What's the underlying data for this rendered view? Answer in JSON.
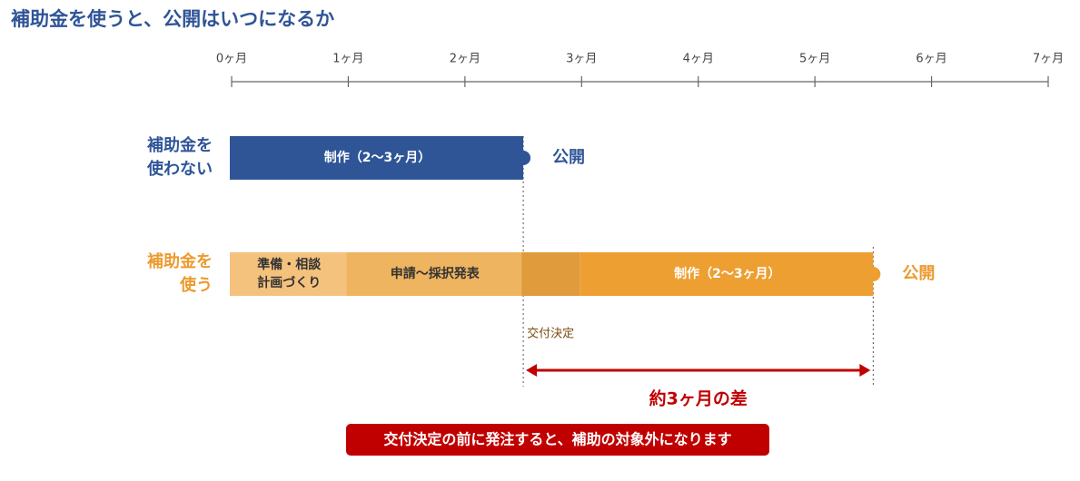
{
  "title": "補助金を使うと、公開はいつになるか",
  "axis": {
    "min": 0,
    "max": 7,
    "ticks": [
      {
        "value": 0,
        "label": "0ヶ月"
      },
      {
        "value": 1,
        "label": "1ヶ月"
      },
      {
        "value": 2,
        "label": "2ヶ月"
      },
      {
        "value": 3,
        "label": "3ヶ月"
      },
      {
        "value": 4,
        "label": "4ヶ月"
      },
      {
        "value": 5,
        "label": "5ヶ月"
      },
      {
        "value": 6,
        "label": "6ヶ月"
      },
      {
        "value": 7,
        "label": "7ヶ月"
      }
    ]
  },
  "rows": [
    {
      "label": [
        "補助金を",
        "使わない"
      ],
      "color": "#2f5597",
      "end_label": "公開",
      "segments": [
        {
          "label": [
            "制作（2〜3ヶ月）"
          ],
          "start": 0,
          "end": 2.5,
          "color": "#2f5597"
        }
      ]
    },
    {
      "label": [
        "補助金を",
        "使う"
      ],
      "color": "#ec9a2e",
      "end_label": "公開",
      "segments": [
        {
          "label": [
            "準備・相談",
            "計画づくり"
          ],
          "start": 0,
          "end": 1,
          "color": "#f5c27e"
        },
        {
          "label": [
            "申請〜採択発表"
          ],
          "start": 1,
          "end": 2.5,
          "color": "#efb45f"
        },
        {
          "start": 2.5,
          "end": 3,
          "color": "#e09b3d"
        },
        {
          "label": [
            "制作（2〜3ヶ月）"
          ],
          "start": 3,
          "end": 5.5,
          "color": "#ee9f32"
        }
      ]
    }
  ],
  "marker": {
    "label": "交付決定",
    "at": 2.5
  },
  "difference": {
    "label": "約3ヶ月の差",
    "start": 2.5,
    "end": 5.5
  },
  "note": "交付決定の前に発注すると、補助の対象外になります"
}
